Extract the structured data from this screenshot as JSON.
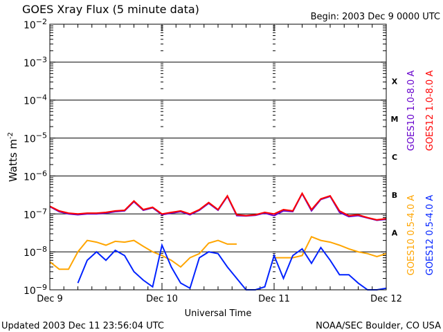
{
  "chart_data": {
    "type": "line",
    "title": "GOES Xray Flux (5 minute data)",
    "subtitle": "Begin:  2003 Dec 9 0000 UTC",
    "xlabel": "Universal Time",
    "ylabel": "Watts m",
    "ylabel_exponent": "-2",
    "yscale": "log",
    "ylim": [
      1e-09,
      0.01
    ],
    "xlim_hours": [
      0,
      72
    ],
    "x_tick_labels": [
      "Dec 9",
      "Dec 10",
      "Dec 11",
      "Dec 12"
    ],
    "y_tick_labels": [
      {
        "base": "10",
        "exp": "-2"
      },
      {
        "base": "10",
        "exp": "-3"
      },
      {
        "base": "10",
        "exp": "-4"
      },
      {
        "base": "10",
        "exp": "-5"
      },
      {
        "base": "10",
        "exp": "-6"
      },
      {
        "base": "10",
        "exp": "-7"
      },
      {
        "base": "10",
        "exp": "-8"
      },
      {
        "base": "10",
        "exp": "-9"
      }
    ],
    "flare_classes": [
      "X",
      "M",
      "C",
      "B",
      "A"
    ],
    "grid": "horizontal lines at each decade from 1e-8 to 1e-3",
    "x_hours": [
      0,
      2,
      4,
      6,
      8,
      10,
      12,
      14,
      16,
      18,
      20,
      22,
      24,
      26,
      28,
      30,
      32,
      34,
      36,
      38,
      40,
      42,
      44,
      46,
      48,
      50,
      52,
      54,
      56,
      58,
      60,
      62,
      64,
      66,
      68,
      70,
      72
    ],
    "series": [
      {
        "name": "GOES10 1.0-8.0 A",
        "color": "#6600cc",
        "values": [
          1.55e-07,
          1.15e-07,
          1e-07,
          9.5e-08,
          1e-07,
          1e-07,
          1.05e-07,
          1.15e-07,
          1.2e-07,
          2.1e-07,
          1.25e-07,
          1.45e-07,
          9.5e-08,
          1.05e-07,
          1.15e-07,
          9.5e-08,
          1.25e-07,
          1.9e-07,
          1.25e-07,
          2.9e-07,
          9e-08,
          8.8e-08,
          9.2e-08,
          1.05e-07,
          9e-08,
          1.2e-07,
          1.15e-07,
          3.4e-07,
          1.2e-07,
          2.4e-07,
          2.9e-07,
          1.1e-07,
          8.5e-08,
          9e-08,
          7.8e-08,
          6.8e-08,
          7.2e-08
        ]
      },
      {
        "name": "GOES12 1.0-8.0 A",
        "color": "#ff0000",
        "values": [
          1.6e-07,
          1.2e-07,
          1.05e-07,
          1e-07,
          1.05e-07,
          1.05e-07,
          1.1e-07,
          1.2e-07,
          1.25e-07,
          2.2e-07,
          1.3e-07,
          1.5e-07,
          1e-07,
          1.1e-07,
          1.2e-07,
          1e-07,
          1.3e-07,
          2e-07,
          1.3e-07,
          3e-07,
          9.5e-08,
          9e-08,
          9.5e-08,
          1.1e-07,
          1e-07,
          1.3e-07,
          1.2e-07,
          3.5e-07,
          1.3e-07,
          2.5e-07,
          3e-07,
          1.2e-07,
          9e-08,
          9.5e-08,
          8e-08,
          7e-08,
          7.5e-08
        ]
      },
      {
        "name": "GOES10 0.5-4.0 A",
        "color": "#ffa500",
        "values": [
          5.5e-09,
          3.5e-09,
          3.5e-09,
          1e-08,
          2e-08,
          1.8e-08,
          1.5e-08,
          1.9e-08,
          1.8e-08,
          2e-08,
          1.4e-08,
          1e-08,
          8e-09,
          6e-09,
          4e-09,
          7e-09,
          9e-09,
          1.7e-08,
          2e-08,
          1.6e-08,
          1.6e-08,
          null,
          null,
          null,
          7e-09,
          7e-09,
          7e-09,
          8e-09,
          2.5e-08,
          2e-08,
          1.8e-08,
          1.5e-08,
          1.2e-08,
          1e-08,
          9e-09,
          7.5e-09,
          9e-09
        ]
      },
      {
        "name": "GOES12 0.5-4.0 A",
        "color": "#0022ff",
        "values": [
          null,
          null,
          null,
          1.5e-09,
          6e-09,
          1e-08,
          6e-09,
          1.1e-08,
          8e-09,
          3e-09,
          1.8e-09,
          1.2e-09,
          1.5e-08,
          4e-09,
          1.5e-09,
          1.1e-09,
          7e-09,
          1e-08,
          9e-09,
          4e-09,
          2e-09,
          1e-09,
          8e-10,
          1.2e-09,
          8e-09,
          2e-09,
          8e-09,
          1.2e-08,
          5e-09,
          1.3e-08,
          6e-09,
          2.5e-09,
          2.5e-09,
          1.5e-09,
          1e-09,
          9e-10,
          1.1e-09
        ]
      }
    ]
  },
  "footer": {
    "updated": "Updated 2003 Dec 11 23:56:04 UTC",
    "credit": "NOAA/SEC Boulder, CO USA"
  }
}
